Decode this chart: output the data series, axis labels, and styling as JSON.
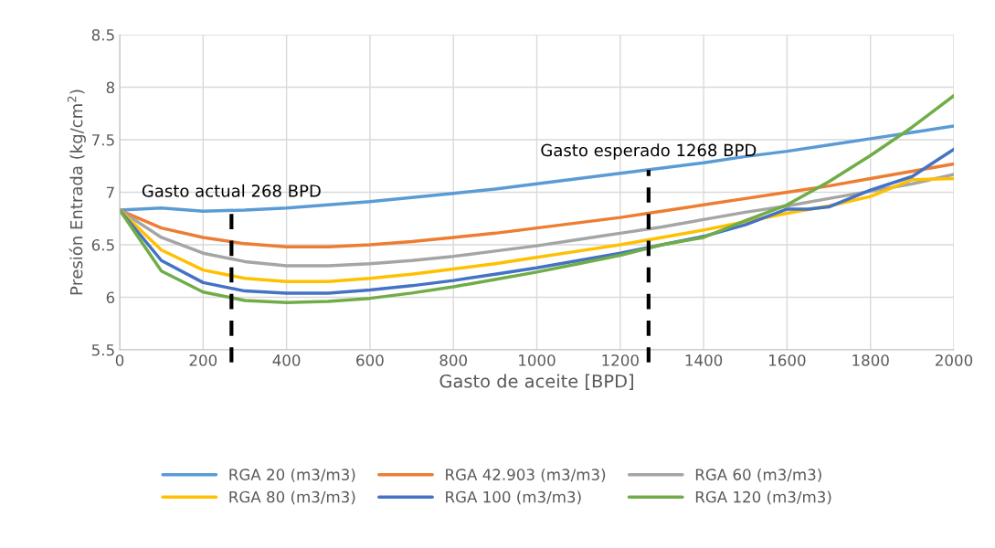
{
  "chart_data": {
    "type": "line",
    "xlabel": "Gasto de aceite [BPD]",
    "ylabel": "Presión Entrada (kg/cm$^{2}$)",
    "x": [
      0,
      100,
      200,
      300,
      400,
      500,
      600,
      700,
      800,
      900,
      1000,
      1100,
      1200,
      1300,
      1400,
      1500,
      1600,
      1700,
      1800,
      1900,
      2000
    ],
    "series": [
      {
        "name": "RGA 20 (m3/m3)",
        "color": "#5b9bd5",
        "values": [
          6.83,
          6.85,
          6.82,
          6.83,
          6.85,
          6.88,
          6.91,
          6.95,
          6.99,
          7.03,
          7.08,
          7.13,
          7.18,
          7.23,
          7.28,
          7.34,
          7.39,
          7.45,
          7.51,
          7.57,
          7.63
        ]
      },
      {
        "name": "RGA 42.903 (m3/m3)",
        "color": "#ed7d31",
        "values": [
          6.83,
          6.66,
          6.57,
          6.51,
          6.48,
          6.48,
          6.5,
          6.53,
          6.57,
          6.61,
          6.66,
          6.71,
          6.76,
          6.82,
          6.88,
          6.94,
          7.0,
          7.06,
          7.13,
          7.2,
          7.27
        ]
      },
      {
        "name": "RGA 60 (m3/m3)",
        "color": "#a5a5a5",
        "values": [
          6.83,
          6.57,
          6.42,
          6.34,
          6.3,
          6.3,
          6.32,
          6.35,
          6.39,
          6.44,
          6.49,
          6.55,
          6.61,
          6.67,
          6.74,
          6.81,
          6.87,
          6.94,
          7.01,
          7.08,
          7.17
        ]
      },
      {
        "name": "RGA 80 (m3/m3)",
        "color": "#ffc000",
        "values": [
          6.83,
          6.45,
          6.26,
          6.18,
          6.15,
          6.15,
          6.18,
          6.22,
          6.27,
          6.32,
          6.38,
          6.44,
          6.5,
          6.57,
          6.64,
          6.72,
          6.8,
          6.87,
          6.96,
          7.12,
          7.13
        ]
      },
      {
        "name": "RGA 100 (m3/m3)",
        "color": "#4472c4",
        "x": [
          0,
          100,
          200,
          300,
          400,
          500,
          600,
          700,
          800,
          900,
          1000,
          1100,
          1200,
          1300,
          1400,
          1500,
          1600,
          1650,
          1700,
          1800,
          1900,
          2000
        ],
        "values": [
          6.83,
          6.35,
          6.14,
          6.06,
          6.04,
          6.04,
          6.07,
          6.11,
          6.16,
          6.22,
          6.28,
          6.35,
          6.42,
          6.5,
          6.58,
          6.69,
          6.84,
          6.84,
          6.86,
          7.02,
          7.15,
          7.41
        ]
      },
      {
        "name": "RGA 120 (m3/m3)",
        "color": "#70ad47",
        "values": [
          6.83,
          6.25,
          6.05,
          5.97,
          5.95,
          5.96,
          5.99,
          6.04,
          6.1,
          6.17,
          6.24,
          6.32,
          6.4,
          6.5,
          6.57,
          6.73,
          6.88,
          7.1,
          7.35,
          7.62,
          7.92
        ]
      }
    ],
    "ref_lines": [
      {
        "axis": "x",
        "value": 268,
        "label": "Gasto actual 268 BPD",
        "color": "#000000",
        "line_style": "dashed"
      },
      {
        "axis": "x",
        "value": 1268,
        "label": "Gasto esperado 1268 BPD",
        "color": "#000000",
        "line_style": "dashed"
      }
    ],
    "xlim": [
      0,
      2000
    ],
    "xticks": [
      0,
      200,
      400,
      600,
      800,
      1000,
      1200,
      1400,
      1600,
      1800,
      2000
    ],
    "ylim": [
      5.5,
      8.5
    ],
    "yticks": [
      5.5,
      {
        "value": 6,
        "label": "6"
      },
      6.5,
      {
        "value": 7,
        "label": "7"
      },
      7.5,
      {
        "value": 8,
        "label": "8"
      },
      8.5
    ],
    "grid": true,
    "legend": "bottom",
    "marker": "none",
    "line_style": "solid"
  }
}
